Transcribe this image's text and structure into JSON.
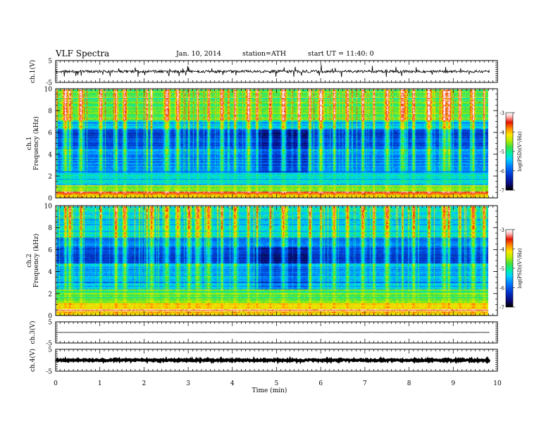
{
  "header": {
    "title": "VLF Spectra",
    "date": "Jan. 10, 2014",
    "station": "station=ATH",
    "start": "start  UT =   11:40: 0"
  },
  "colors": {
    "background": "#ffffff",
    "axis": "#000000",
    "colormap": [
      "#000000",
      "#0a0a78",
      "#0030c8",
      "#0078ff",
      "#00d2ff",
      "#00f0a0",
      "#40e040",
      "#b4f000",
      "#ffe600",
      "#ff8c00",
      "#e61400",
      "#ffb4b4",
      "#ffffff"
    ]
  },
  "chart_data": [
    {
      "type": "line",
      "panel": "ch1-waveform",
      "ylabel": "ch.1(V)",
      "ylim": [
        -5,
        5
      ],
      "yticks": [
        -5,
        5
      ],
      "ytick_labels": [
        "-5",
        "5"
      ],
      "xlim": [
        0,
        10
      ],
      "baseline": 0,
      "noise_amplitude": 0.6,
      "spike_amplitude": 2.5,
      "note_x_sampled_per_minute": 60
    },
    {
      "type": "heatmap",
      "panel": "ch1-spectrogram",
      "ylabel": "ch.1\nFrequency (kHz)",
      "ylim": [
        0,
        10
      ],
      "yticks": [
        0,
        2,
        4,
        6,
        8,
        10
      ],
      "ytick_labels": [
        "0",
        "2",
        "4",
        "6",
        "8",
        "10"
      ],
      "xlim": [
        0,
        10
      ],
      "data_extent_min": 9.8,
      "colorbar": {
        "label": "log(PSD)(V²/Hz)",
        "range": [
          -7,
          -3
        ],
        "ticks": [
          "-3",
          "-4",
          "-5",
          "-6",
          "-7"
        ]
      },
      "quiet_interval": [
        4.5,
        5.7
      ],
      "noise_bursts_min": [
        0.2,
        0.3,
        0.55,
        1.0,
        1.35,
        1.55,
        2.05,
        2.15,
        2.5,
        2.75,
        3.0,
        3.2,
        3.45,
        3.75,
        4.05,
        4.35,
        4.55,
        4.85,
        5.15,
        5.5,
        5.75,
        6.0,
        6.3,
        6.6,
        6.95,
        7.2,
        7.5,
        7.85,
        8.1,
        8.45,
        8.8,
        8.9,
        9.15,
        9.45,
        9.7
      ]
    },
    {
      "type": "heatmap",
      "panel": "ch2-spectrogram",
      "ylabel": "ch.2\nFrequency (kHz)",
      "ylim": [
        0,
        10
      ],
      "yticks": [
        0,
        2,
        4,
        6,
        8,
        10
      ],
      "ytick_labels": [
        "0",
        "2",
        "4",
        "6",
        "8",
        "10"
      ],
      "xlim": [
        0,
        10
      ],
      "data_extent_min": 9.8,
      "colorbar": {
        "label": "log(PSD)(V²/Hz)",
        "range": [
          -7,
          -3
        ],
        "ticks": [
          "-3",
          "-4",
          "-5",
          "-6",
          "-7"
        ]
      },
      "quiet_interval": [
        4.5,
        5.7
      ],
      "noise_bursts_min": [
        0.2,
        0.3,
        0.55,
        1.0,
        1.35,
        1.55,
        2.05,
        2.15,
        2.5,
        2.75,
        3.0,
        3.2,
        3.45,
        3.75,
        4.05,
        4.35,
        4.55,
        4.85,
        5.15,
        5.5,
        5.75,
        6.0,
        6.3,
        6.6,
        6.95,
        7.2,
        7.5,
        7.85,
        8.1,
        8.45,
        8.8,
        8.9,
        9.15,
        9.45,
        9.7
      ]
    },
    {
      "type": "line",
      "panel": "ch3-waveform",
      "ylabel": "ch.3(V)",
      "ylim": [
        -5,
        5
      ],
      "yticks": [
        -5,
        5
      ],
      "ytick_labels": [
        "-5",
        "5"
      ],
      "xlim": [
        0,
        10
      ],
      "baseline": 0,
      "noise_amplitude": 0.05,
      "spike_amplitude": 0
    },
    {
      "type": "line",
      "panel": "ch4-waveform",
      "ylabel": "ch.4(V)",
      "ylim": [
        -5,
        5
      ],
      "yticks": [
        -5,
        5
      ],
      "ytick_labels": [
        "-5",
        "5"
      ],
      "xlim": [
        0,
        10
      ],
      "baseline": 0,
      "noise_amplitude": 0.35,
      "spike_amplitude": 0
    }
  ],
  "x_axis": {
    "label": "Time  (min)",
    "range": [
      0,
      10
    ],
    "ticks": [
      "0",
      "1",
      "2",
      "3",
      "4",
      "5",
      "6",
      "7",
      "8",
      "9",
      "10"
    ]
  }
}
